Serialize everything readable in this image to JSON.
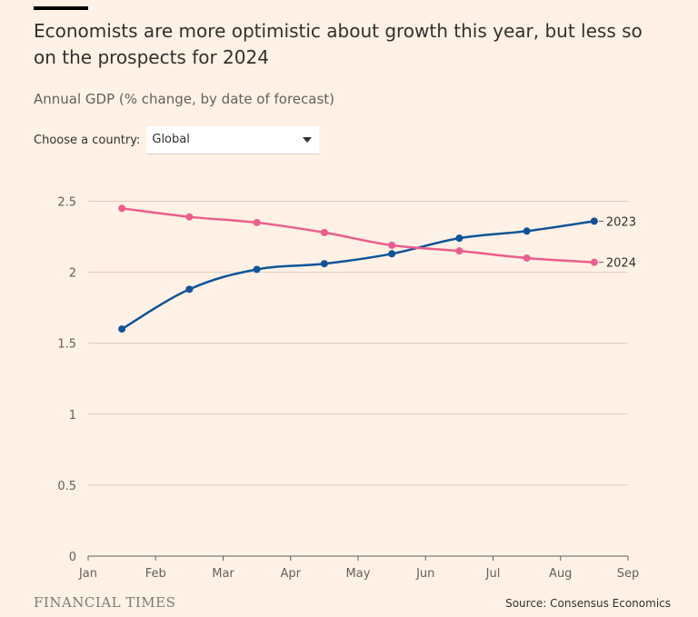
{
  "header": {
    "title": "Economists are more optimistic about growth this year, but less so on the prospects for 2024",
    "subtitle": "Annual GDP (% change, by date of forecast)"
  },
  "control": {
    "label": "Choose a country:",
    "selected": "Global"
  },
  "footer": {
    "brand": "FINANCIAL TIMES",
    "source": "Source: Consensus Economics"
  },
  "colors": {
    "background": "#fff1e5",
    "series_2023": "#0f5499",
    "series_2024": "#eb5e8d",
    "grid": "#d9ccc1"
  },
  "chart_data": {
    "type": "line",
    "xlabel": "",
    "ylabel": "",
    "x_ticks": [
      "Jan",
      "Feb",
      "Mar",
      "Apr",
      "May",
      "Jun",
      "Jul",
      "Aug",
      "Sep"
    ],
    "y_ticks": [
      "0",
      "0.5",
      "1",
      "1.5",
      "2",
      "2.5"
    ],
    "ylim": [
      0,
      2.5
    ],
    "grid": true,
    "x": [
      "Jan 15",
      "Feb 15",
      "Mar 15",
      "Apr 15",
      "May 15",
      "Jun 15",
      "Jul 15",
      "Aug 15"
    ],
    "series": [
      {
        "name": "2023",
        "color": "#0f5499",
        "values": [
          1.6,
          1.88,
          2.02,
          2.06,
          2.13,
          2.24,
          2.29,
          2.36
        ]
      },
      {
        "name": "2024",
        "color": "#eb5e8d",
        "values": [
          2.45,
          2.39,
          2.35,
          2.28,
          2.19,
          2.15,
          2.1,
          2.07
        ]
      }
    ]
  }
}
